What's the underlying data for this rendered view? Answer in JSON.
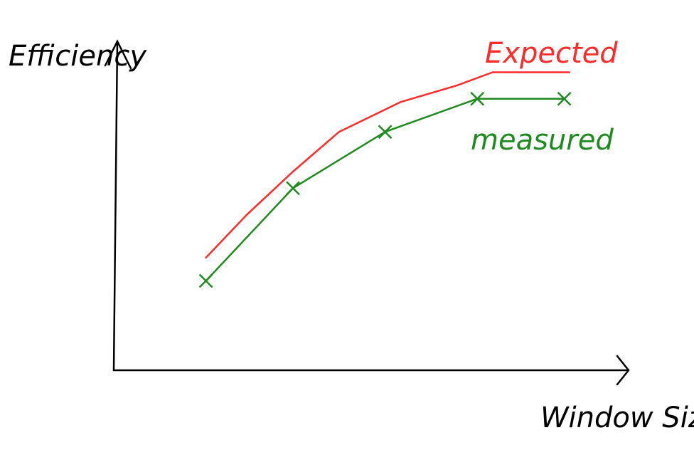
{
  "chart_data": {
    "type": "line",
    "xlabel": "Window Size",
    "ylabel": "Efficiency",
    "xlim": [
      0,
      100
    ],
    "ylim": [
      0,
      100
    ],
    "series": [
      {
        "name": "Expected",
        "color": "#ff2a2a",
        "x": [
          18,
          26,
          35,
          44,
          56,
          67,
          74,
          89
        ],
        "values": [
          34,
          47,
          60,
          72,
          81,
          86,
          90,
          90
        ]
      },
      {
        "name": "measured",
        "color": "#1f8a1f",
        "markers": true,
        "x": [
          18,
          35,
          53,
          71,
          88
        ],
        "values": [
          27,
          55,
          72,
          82,
          82
        ]
      }
    ]
  }
}
